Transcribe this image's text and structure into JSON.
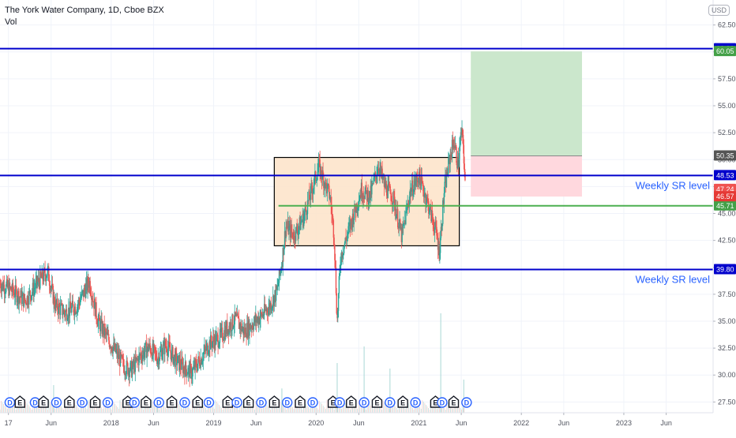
{
  "title": "The York Water Company, 1D, Cboe BZX",
  "volume_label": "Vol",
  "currency": "USD",
  "colors": {
    "up": "#26a69a",
    "down": "#ef5350",
    "sr_line": "#0000cc",
    "green_line": "#4caf50",
    "box_fill": "#fde3c8",
    "box_stroke": "#000000",
    "target_zone": "#c8e6c9",
    "stop_zone": "#ffd6dc",
    "label_text": "#2962ff"
  },
  "chart_data": {
    "type": "candlestick",
    "y_range": [
      26.5,
      63.5
    ],
    "x_range": [
      "2016-12-01",
      "2023-11-15"
    ],
    "x_ticks": [
      {
        "date": "2016-12-31",
        "label": "17"
      },
      {
        "date": "2017-06-01",
        "label": "Jun"
      },
      {
        "date": "2018-01-01",
        "label": "2018"
      },
      {
        "date": "2018-06-01",
        "label": "Jun"
      },
      {
        "date": "2019-01-01",
        "label": "2019"
      },
      {
        "date": "2019-06-01",
        "label": "Jun"
      },
      {
        "date": "2020-01-01",
        "label": "2020"
      },
      {
        "date": "2020-06-01",
        "label": "Jun"
      },
      {
        "date": "2021-01-01",
        "label": "2021"
      },
      {
        "date": "2021-06-01",
        "label": "Jun"
      },
      {
        "date": "2022-01-01",
        "label": "2022"
      },
      {
        "date": "2022-06-01",
        "label": "Jun"
      },
      {
        "date": "2023-01-01",
        "label": "2023"
      },
      {
        "date": "2023-06-01",
        "label": "Jun"
      }
    ],
    "y_ticks": [
      "27.50",
      "30.00",
      "32.50",
      "35.00",
      "37.50",
      "40.00",
      "42.50",
      "45.00",
      "47.50",
      "50.00",
      "52.50",
      "55.00",
      "57.50",
      "60.00",
      "62.50"
    ],
    "price_path": [
      {
        "date": "2016-12-01",
        "close": 38.5
      },
      {
        "date": "2017-01-15",
        "close": 37.8
      },
      {
        "date": "2017-03-01",
        "close": 36.9
      },
      {
        "date": "2017-04-15",
        "close": 38.6
      },
      {
        "date": "2017-05-20",
        "close": 39.6
      },
      {
        "date": "2017-06-15",
        "close": 36.5
      },
      {
        "date": "2017-07-20",
        "close": 35.8
      },
      {
        "date": "2017-09-01",
        "close": 36.4
      },
      {
        "date": "2017-10-15",
        "close": 38.7
      },
      {
        "date": "2017-11-15",
        "close": 35.0
      },
      {
        "date": "2017-12-20",
        "close": 33.4
      },
      {
        "date": "2018-01-20",
        "close": 32.0
      },
      {
        "date": "2018-02-15",
        "close": 30.8
      },
      {
        "date": "2018-03-15",
        "close": 30.5
      },
      {
        "date": "2018-04-15",
        "close": 31.8
      },
      {
        "date": "2018-05-15",
        "close": 32.6
      },
      {
        "date": "2018-06-15",
        "close": 31.6
      },
      {
        "date": "2018-07-15",
        "close": 32.8
      },
      {
        "date": "2018-08-15",
        "close": 31.5
      },
      {
        "date": "2018-09-15",
        "close": 30.7
      },
      {
        "date": "2018-10-15",
        "close": 30.2
      },
      {
        "date": "2018-11-15",
        "close": 31.5
      },
      {
        "date": "2018-12-20",
        "close": 33.0
      },
      {
        "date": "2019-01-20",
        "close": 33.4
      },
      {
        "date": "2019-02-20",
        "close": 34.4
      },
      {
        "date": "2019-03-20",
        "close": 35.2
      },
      {
        "date": "2019-04-20",
        "close": 34.0
      },
      {
        "date": "2019-05-20",
        "close": 34.8
      },
      {
        "date": "2019-06-20",
        "close": 35.5
      },
      {
        "date": "2019-07-20",
        "close": 36.4
      },
      {
        "date": "2019-08-15",
        "close": 37.8
      },
      {
        "date": "2019-09-01",
        "close": 40.5
      },
      {
        "date": "2019-09-15",
        "close": 43.8
      },
      {
        "date": "2019-10-15",
        "close": 43.0
      },
      {
        "date": "2019-11-15",
        "close": 44.5
      },
      {
        "date": "2019-12-15",
        "close": 47.0
      },
      {
        "date": "2020-01-10",
        "close": 49.4
      },
      {
        "date": "2020-01-30",
        "close": 48.0
      },
      {
        "date": "2020-02-20",
        "close": 46.5
      },
      {
        "date": "2020-03-05",
        "close": 43.0
      },
      {
        "date": "2020-03-16",
        "close": 35.0
      },
      {
        "date": "2020-03-28",
        "close": 41.0
      },
      {
        "date": "2020-04-15",
        "close": 42.5
      },
      {
        "date": "2020-05-15",
        "close": 45.0
      },
      {
        "date": "2020-06-10",
        "close": 47.2
      },
      {
        "date": "2020-07-10",
        "close": 46.5
      },
      {
        "date": "2020-08-10",
        "close": 49.5
      },
      {
        "date": "2020-09-01",
        "close": 47.5
      },
      {
        "date": "2020-10-01",
        "close": 46.5
      },
      {
        "date": "2020-11-01",
        "close": 42.8
      },
      {
        "date": "2020-12-01",
        "close": 47.0
      },
      {
        "date": "2021-01-01",
        "close": 48.5
      },
      {
        "date": "2021-02-01",
        "close": 46.0
      },
      {
        "date": "2021-03-01",
        "close": 43.5
      },
      {
        "date": "2021-03-15",
        "close": 41.5
      },
      {
        "date": "2021-04-01",
        "close": 47.0
      },
      {
        "date": "2021-04-20",
        "close": 50.0
      },
      {
        "date": "2021-05-05",
        "close": 51.8
      },
      {
        "date": "2021-05-20",
        "close": 49.5
      },
      {
        "date": "2021-06-01",
        "close": 52.5
      },
      {
        "date": "2021-06-08",
        "close": 51.5
      },
      {
        "date": "2021-06-15",
        "close": 47.24
      }
    ],
    "volume_spikes": [
      {
        "date": "2017-06-10",
        "height": 0.25
      },
      {
        "date": "2018-06-15",
        "height": 0.1
      },
      {
        "date": "2019-09-01",
        "height": 0.22
      },
      {
        "date": "2020-03-16",
        "height": 0.45
      },
      {
        "date": "2020-06-20",
        "height": 0.6
      },
      {
        "date": "2020-09-20",
        "height": 0.4
      },
      {
        "date": "2021-03-20",
        "height": 0.9
      },
      {
        "date": "2021-06-10",
        "height": 0.3
      }
    ],
    "horizontal_lines": [
      {
        "price": 60.3,
        "color": "#0000cc",
        "tag_color": "#0000cc",
        "tag": "60.30",
        "x_start": "2016-12-01",
        "x_end": "2023-11-15"
      },
      {
        "price": 48.53,
        "color": "#0000cc",
        "tag_color": "#0000cc",
        "tag": "48.53",
        "x_start": "2016-12-01",
        "x_end": "2023-11-15",
        "label": "Weekly SR level"
      },
      {
        "price": 39.8,
        "color": "#0000cc",
        "tag_color": "#0000cc",
        "tag": "39.80",
        "x_start": "2016-12-01",
        "x_end": "2023-11-15",
        "label": "Weekly SR level"
      },
      {
        "price": 45.71,
        "color": "#4caf50",
        "tag_color": "#43a047",
        "tag": "45.71",
        "x_start": "2019-08-20",
        "x_end": "2023-11-15"
      }
    ],
    "range_box": {
      "x_start": "2019-08-05",
      "x_end": "2021-05-25",
      "y_bottom": 42.0,
      "y_top": 50.2
    },
    "position": {
      "x_start": "2021-07-05",
      "x_end": "2022-08-05",
      "entry": 50.35,
      "target": 60.05,
      "stop": 46.57
    },
    "price_tags": [
      {
        "price": 60.05,
        "text": "60.05",
        "color": "#43a047"
      },
      {
        "price": 50.35,
        "text": "50.35",
        "color": "#555555"
      },
      {
        "price": 47.24,
        "text": "47.24",
        "color": "#ef5350"
      },
      {
        "price": 46.57,
        "text": "46.57",
        "color": "#e53935"
      }
    ],
    "events": [
      {
        "date": "2017-01-05",
        "kind": "dividend",
        "letter": "D"
      },
      {
        "date": "2017-02-10",
        "kind": "earnings",
        "letter": "E"
      },
      {
        "date": "2017-04-05",
        "kind": "dividend",
        "letter": "D"
      },
      {
        "date": "2017-05-05",
        "kind": "earnings",
        "letter": "E"
      },
      {
        "date": "2017-06-20",
        "kind": "dividend",
        "letter": "D"
      },
      {
        "date": "2017-08-05",
        "kind": "earnings",
        "letter": "E"
      },
      {
        "date": "2017-09-20",
        "kind": "dividend",
        "letter": "D"
      },
      {
        "date": "2017-11-05",
        "kind": "earnings",
        "letter": "E"
      },
      {
        "date": "2017-12-20",
        "kind": "dividend",
        "letter": "D"
      },
      {
        "date": "2018-03-01",
        "kind": "earnings",
        "letter": "E"
      },
      {
        "date": "2018-03-25",
        "kind": "dividend",
        "letter": "D"
      },
      {
        "date": "2018-05-05",
        "kind": "earnings",
        "letter": "E"
      },
      {
        "date": "2018-06-20",
        "kind": "dividend",
        "letter": "D"
      },
      {
        "date": "2018-08-05",
        "kind": "earnings",
        "letter": "E"
      },
      {
        "date": "2018-09-20",
        "kind": "dividend",
        "letter": "D"
      },
      {
        "date": "2018-11-05",
        "kind": "earnings",
        "letter": "E"
      },
      {
        "date": "2018-12-15",
        "kind": "dividend",
        "letter": "D"
      },
      {
        "date": "2019-02-20",
        "kind": "earnings",
        "letter": "E"
      },
      {
        "date": "2019-03-25",
        "kind": "dividend",
        "letter": "D"
      },
      {
        "date": "2019-05-05",
        "kind": "earnings",
        "letter": "E"
      },
      {
        "date": "2019-06-20",
        "kind": "dividend",
        "letter": "D"
      },
      {
        "date": "2019-08-05",
        "kind": "earnings",
        "letter": "E"
      },
      {
        "date": "2019-09-20",
        "kind": "dividend",
        "letter": "D"
      },
      {
        "date": "2019-11-05",
        "kind": "earnings",
        "letter": "E"
      },
      {
        "date": "2019-12-20",
        "kind": "dividend",
        "letter": "D"
      },
      {
        "date": "2020-03-01",
        "kind": "earnings",
        "letter": "E"
      },
      {
        "date": "2020-03-25",
        "kind": "dividend",
        "letter": "D"
      },
      {
        "date": "2020-05-05",
        "kind": "earnings",
        "letter": "E"
      },
      {
        "date": "2020-06-20",
        "kind": "dividend",
        "letter": "D"
      },
      {
        "date": "2020-08-05",
        "kind": "earnings",
        "letter": "E"
      },
      {
        "date": "2020-09-20",
        "kind": "dividend",
        "letter": "D"
      },
      {
        "date": "2020-11-05",
        "kind": "earnings",
        "letter": "E"
      },
      {
        "date": "2020-12-20",
        "kind": "dividend",
        "letter": "D"
      },
      {
        "date": "2021-03-01",
        "kind": "earnings",
        "letter": "E"
      },
      {
        "date": "2021-03-25",
        "kind": "dividend",
        "letter": "D"
      },
      {
        "date": "2021-05-05",
        "kind": "earnings",
        "letter": "E"
      },
      {
        "date": "2021-06-20",
        "kind": "dividend",
        "letter": "D"
      }
    ]
  }
}
